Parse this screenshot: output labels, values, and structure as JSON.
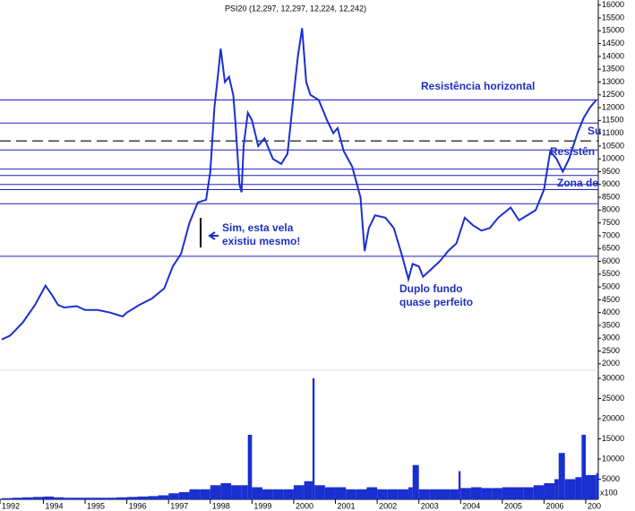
{
  "chart_data": [
    {
      "type": "line",
      "title": "PSI20 (12,297, 12,297, 12,224, 12,242)",
      "color": "#1a2fd0",
      "x": [
        1993.0,
        1993.2,
        1993.5,
        1993.8,
        1994.05,
        1994.2,
        1994.35,
        1994.5,
        1994.8,
        1995.0,
        1995.3,
        1995.6,
        1995.9,
        1996.0,
        1996.3,
        1996.6,
        1996.9,
        1997.1,
        1997.3,
        1997.5,
        1997.7,
        1997.9,
        1998.0,
        1998.1,
        1998.2,
        1998.25,
        1998.35,
        1998.45,
        1998.55,
        1998.6,
        1998.7,
        1998.75,
        1998.8,
        1998.9,
        1999.0,
        1999.15,
        1999.3,
        1999.5,
        1999.7,
        1999.85,
        2000.0,
        2000.1,
        2000.2,
        2000.3,
        2000.4,
        2000.6,
        2000.8,
        2000.95,
        2001.05,
        2001.2,
        2001.4,
        2001.6,
        2001.7,
        2001.8,
        2001.95,
        2002.2,
        2002.4,
        2002.6,
        2002.75,
        2002.85,
        2003.0,
        2003.1,
        2003.3,
        2003.5,
        2003.7,
        2003.9,
        2004.1,
        2004.3,
        2004.5,
        2004.7,
        2004.9,
        2005.2,
        2005.4,
        2005.6,
        2005.8,
        2006.0,
        2006.15,
        2006.3,
        2006.45,
        2006.6,
        2006.8,
        2006.95,
        2007.1,
        2007.25
      ],
      "values": [
        2950,
        3100,
        3600,
        4300,
        5050,
        4700,
        4300,
        4200,
        4250,
        4100,
        4100,
        4000,
        3850,
        4000,
        4300,
        4550,
        4950,
        5800,
        6300,
        7500,
        8300,
        8400,
        9500,
        12000,
        13500,
        14300,
        13000,
        13200,
        12500,
        11500,
        9000,
        8700,
        10500,
        11800,
        11500,
        10500,
        10800,
        10000,
        9800,
        10200,
        12500,
        14000,
        15100,
        13000,
        12500,
        12300,
        11500,
        11000,
        11200,
        10300,
        9700,
        8500,
        6400,
        7300,
        7800,
        7700,
        7300,
        6200,
        5300,
        5900,
        5800,
        5400,
        5700,
        6000,
        6400,
        6700,
        7700,
        7400,
        7200,
        7300,
        7700,
        8100,
        7600,
        7800,
        8000,
        8800,
        10300,
        10000,
        9500,
        10000,
        11000,
        11600,
        12000,
        12300
      ],
      "xlim": [
        1992.96,
        2007.3
      ],
      "xticks": [
        {
          "value": 1992.96,
          "label": "1992"
        },
        1994,
        1995,
        1996,
        1997,
        1998,
        1999,
        2000,
        2001,
        2002,
        2003,
        2004,
        2005,
        2006,
        {
          "value": 2007,
          "label": "200"
        }
      ],
      "ylim": [
        1750,
        16200
      ],
      "yticks": [
        2000,
        2500,
        3000,
        3500,
        4000,
        4500,
        5000,
        5500,
        6000,
        6500,
        7000,
        7500,
        8000,
        8500,
        9000,
        9500,
        10000,
        10500,
        11000,
        11500,
        12000,
        12500,
        13000,
        13500,
        14000,
        14500,
        15000,
        15500,
        16000
      ],
      "hlines": [
        12300,
        11400,
        {
          "value": 10700,
          "style": "dashed"
        },
        10350,
        9600,
        9350,
        9000,
        8800,
        8250,
        6200
      ],
      "annotations": [
        "Resistência horizontal",
        "Sim, esta vela",
        "existiu mesmo!",
        "Duplo fundo",
        "quase perfeito",
        "Resistên",
        "Su",
        "Zona de"
      ]
    },
    {
      "type": "bar",
      "color": "#1a2fd0",
      "unit": "x100",
      "x": [
        1993.0,
        1993.25,
        1993.5,
        1993.75,
        1994.0,
        1994.25,
        1994.5,
        1994.75,
        1995.0,
        1995.25,
        1995.5,
        1995.75,
        1996.0,
        1996.25,
        1996.5,
        1996.75,
        1997.0,
        1997.25,
        1997.5,
        1997.75,
        1998.0,
        1998.25,
        1998.5,
        1998.75,
        1998.9,
        1999.0,
        1999.25,
        1999.5,
        1999.75,
        2000.0,
        2000.25,
        2000.45,
        2000.5,
        2000.75,
        2001.0,
        2001.25,
        2001.5,
        2001.75,
        2002.0,
        2002.25,
        2002.5,
        2002.75,
        2002.85,
        2003.0,
        2003.25,
        2003.5,
        2003.75,
        2003.95,
        2004.0,
        2004.25,
        2004.5,
        2004.75,
        2005.0,
        2005.25,
        2005.5,
        2005.75,
        2006.0,
        2006.25,
        2006.35,
        2006.5,
        2006.75,
        2006.9,
        2007.0,
        2007.25
      ],
      "values": [
        300,
        400,
        500,
        600,
        700,
        500,
        400,
        400,
        400,
        400,
        400,
        500,
        600,
        700,
        800,
        1000,
        1500,
        1800,
        2500,
        2500,
        3500,
        4000,
        3500,
        3500,
        16000,
        3000,
        2500,
        2500,
        2500,
        3500,
        4500,
        30000,
        3500,
        3000,
        3000,
        2500,
        2500,
        3000,
        2500,
        2500,
        2500,
        3000,
        8500,
        2500,
        2500,
        2500,
        2500,
        7000,
        2800,
        3000,
        2800,
        2800,
        3000,
        3000,
        3000,
        3500,
        4000,
        5000,
        11500,
        5000,
        5500,
        16000,
        6000,
        6500
      ],
      "ylim": [
        0,
        32000
      ],
      "yticks": [
        5000,
        10000,
        15000,
        20000,
        25000,
        30000
      ]
    }
  ]
}
